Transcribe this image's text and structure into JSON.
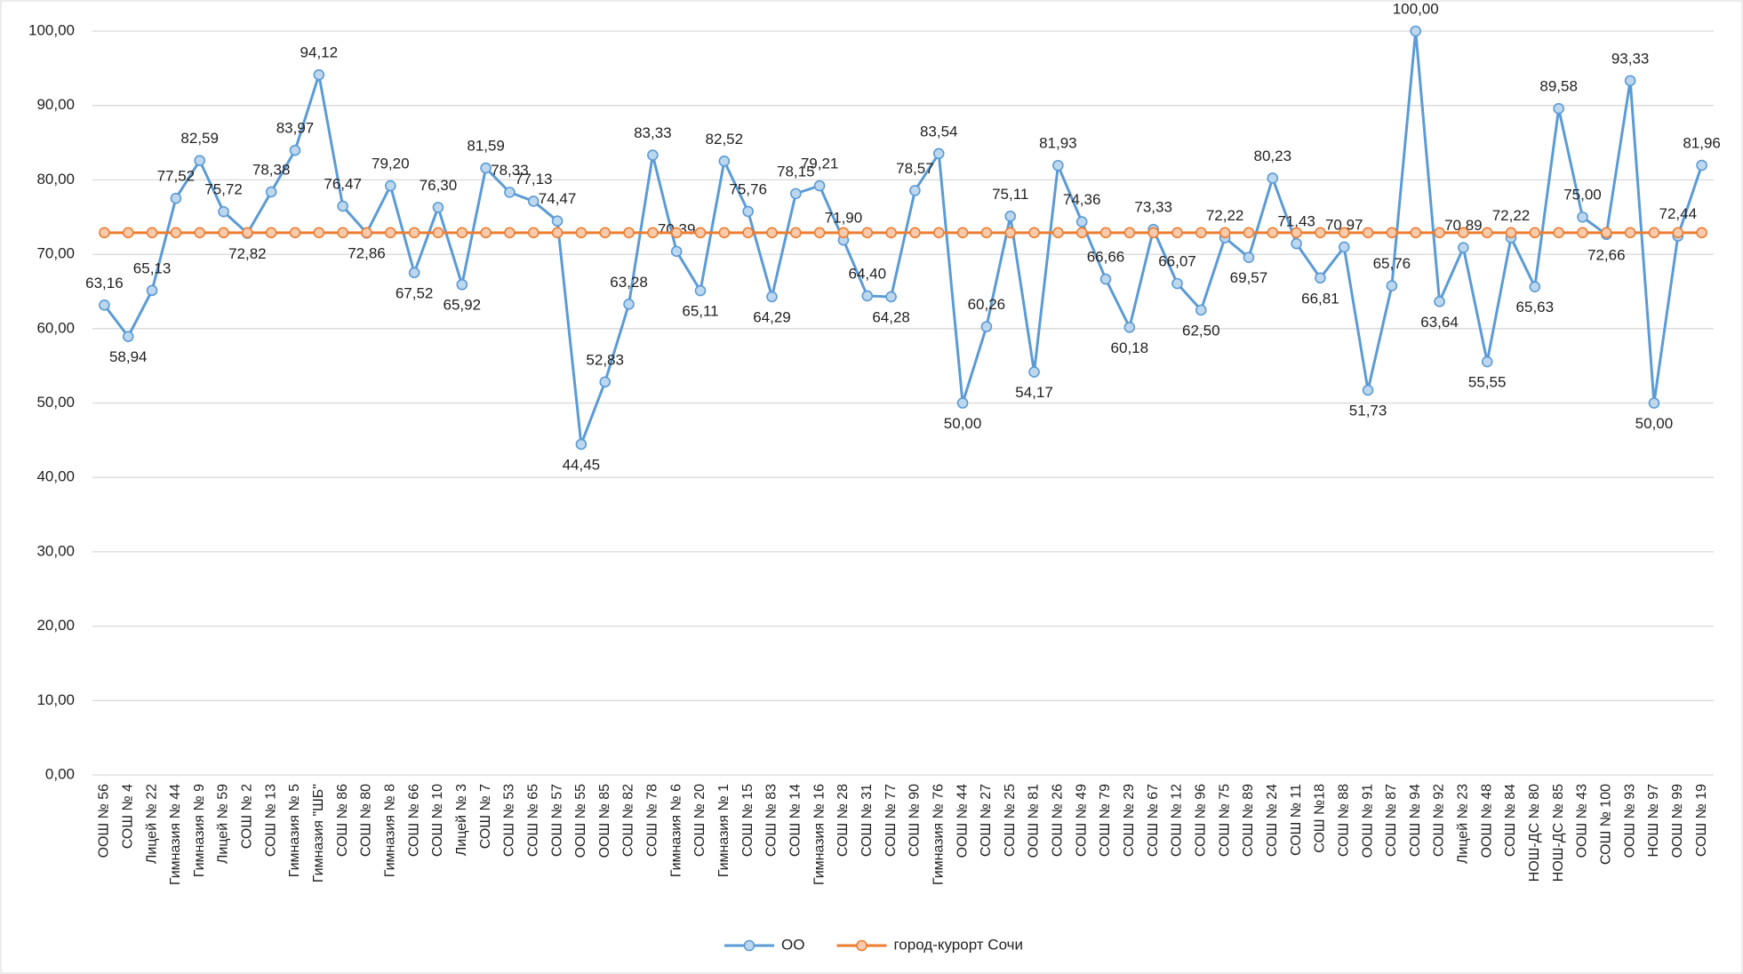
{
  "chart_data": {
    "type": "line",
    "categories": [
      "ООШ № 56",
      "СОШ № 4",
      "Лицей № 22",
      "Гимназия № 44",
      "Гимназия № 9",
      "Лицей № 59",
      "СОШ № 2",
      "СОШ № 13",
      "Гимназия № 5",
      "Гимназия \"ШБ\"",
      "СОШ № 86",
      "СОШ № 80",
      "Гимназия № 8",
      "СОШ № 66",
      "СОШ № 10",
      "Лицей № 3",
      "СОШ № 7",
      "СОШ № 53",
      "СОШ № 65",
      "СОШ № 57",
      "ООШ № 55",
      "ООШ № 85",
      "СОШ № 82",
      "СОШ № 78",
      "Гимназия № 6",
      "СОШ № 20",
      "Гимназия № 1",
      "СОШ № 15",
      "СОШ № 83",
      "СОШ № 14",
      "Гимназия № 16",
      "СОШ № 28",
      "СОШ № 31",
      "СОШ № 77",
      "СОШ № 90",
      "Гимназия № 76",
      "ООШ № 44",
      "СОШ № 27",
      "СОШ № 25",
      "ООШ № 81",
      "СОШ № 26",
      "СОШ № 49",
      "СОШ № 79",
      "СОШ № 29",
      "СОШ № 67",
      "СОШ № 12",
      "СОШ № 96",
      "СОШ № 75",
      "СОШ № 89",
      "СОШ № 24",
      "СОШ № 11",
      "СОШ №18",
      "СОШ № 88",
      "ООШ № 91",
      "СОШ № 87",
      "СОШ № 94",
      "СОШ № 92",
      "Лицей № 23",
      "ООШ № 48",
      "СОШ № 84",
      "НОШ-ДС № 80",
      "НОШ-ДС № 85",
      "ООШ № 43",
      "СОШ № 100",
      "ООШ № 93",
      "НОШ № 97",
      "ООШ № 99",
      "СОШ № 19"
    ],
    "series": [
      {
        "name": "ОО",
        "color": "#5b9bd5",
        "marker_fill": "#bdd7ee",
        "values": [
          63.16,
          58.94,
          65.13,
          77.52,
          82.59,
          75.72,
          72.82,
          78.38,
          83.97,
          94.12,
          76.47,
          72.86,
          79.2,
          67.52,
          76.3,
          65.92,
          81.59,
          78.33,
          77.13,
          74.47,
          44.45,
          52.83,
          63.28,
          83.33,
          70.39,
          65.11,
          82.52,
          75.76,
          64.29,
          78.15,
          79.21,
          71.9,
          64.4,
          64.28,
          78.57,
          83.54,
          50.0,
          60.26,
          75.11,
          54.17,
          81.93,
          74.36,
          66.66,
          60.18,
          73.33,
          66.07,
          62.5,
          72.22,
          69.57,
          80.23,
          71.43,
          66.81,
          70.97,
          51.73,
          65.76,
          100.0,
          63.64,
          70.89,
          55.55,
          72.22,
          65.63,
          89.58,
          75.0,
          72.66,
          93.33,
          50.0,
          72.44,
          81.96
        ],
        "value_labels": [
          "63,16",
          "58,94",
          "65,13",
          "77,52",
          "82,59",
          "75,72",
          "72,82",
          "78,38",
          "83,97",
          "94,12",
          "76,47",
          "72,86",
          "79,20",
          "67,52",
          "76,30",
          "65,92",
          "81,59",
          "78,33",
          "77,13",
          "74,47",
          "44,45",
          "52,83",
          "63,28",
          "83,33",
          "70,39",
          "65,11",
          "82,52",
          "75,76",
          "64,29",
          "78,15",
          "79,21",
          "71,90",
          "64,40",
          "64,28",
          "78,57",
          "83,54",
          "50,00",
          "60,26",
          "75,11",
          "54,17",
          "81,93",
          "74,36",
          "66,66",
          "60,18",
          "73,33",
          "66,07",
          "62,50",
          "72,22",
          "69,57",
          "80,23",
          "71,43",
          "66,81",
          "70,97",
          "51,73",
          "65,76",
          "100,00",
          "63,64",
          "70,89",
          "55,55",
          "72,22",
          "65,63",
          "89,58",
          "75,00",
          "72,66",
          "93,33",
          "50,00",
          "72,44",
          "81,96"
        ]
      },
      {
        "name": "город-курорт Сочи",
        "color": "#ed7d31",
        "marker_fill": "#f8cbad",
        "values": [
          72.9,
          72.9,
          72.9,
          72.9,
          72.9,
          72.9,
          72.9,
          72.9,
          72.9,
          72.9,
          72.9,
          72.9,
          72.9,
          72.9,
          72.9,
          72.9,
          72.9,
          72.9,
          72.9,
          72.9,
          72.9,
          72.9,
          72.9,
          72.9,
          72.9,
          72.9,
          72.9,
          72.9,
          72.9,
          72.9,
          72.9,
          72.9,
          72.9,
          72.9,
          72.9,
          72.9,
          72.9,
          72.9,
          72.9,
          72.9,
          72.9,
          72.9,
          72.9,
          72.9,
          72.9,
          72.9,
          72.9,
          72.9,
          72.9,
          72.9,
          72.9,
          72.9,
          72.9,
          72.9,
          72.9,
          72.9,
          72.9,
          72.9,
          72.9,
          72.9,
          72.9,
          72.9,
          72.9,
          72.9,
          72.9,
          72.9,
          72.9,
          72.9
        ]
      }
    ],
    "ylim": [
      0,
      100
    ],
    "yticks": [
      {
        "value": 0,
        "label": "0,00"
      },
      {
        "value": 10,
        "label": "10,00"
      },
      {
        "value": 20,
        "label": "20,00"
      },
      {
        "value": 30,
        "label": "30,00"
      },
      {
        "value": 40,
        "label": "40,00"
      },
      {
        "value": 50,
        "label": "50,00"
      },
      {
        "value": 60,
        "label": "60,00"
      },
      {
        "value": 70,
        "label": "70,00"
      },
      {
        "value": 80,
        "label": "80,00"
      },
      {
        "value": 90,
        "label": "90,00"
      },
      {
        "value": 100,
        "label": "100,00"
      }
    ],
    "grid": true,
    "legend": "bottom"
  }
}
